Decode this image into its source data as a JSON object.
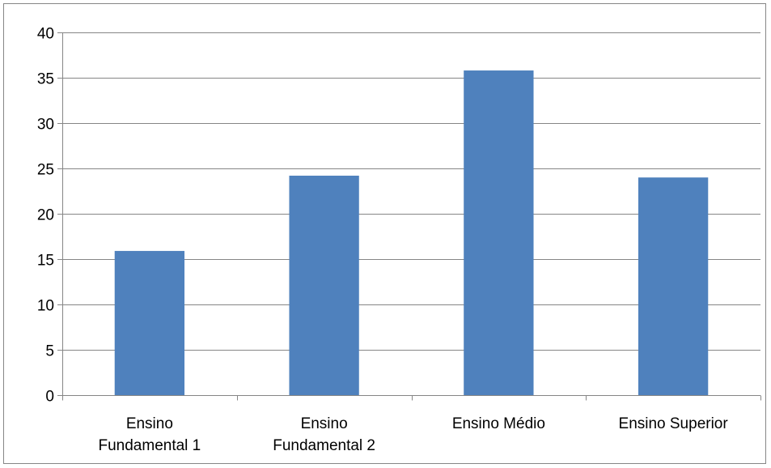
{
  "chart_data": {
    "type": "bar",
    "categories": [
      [
        "Ensino",
        "Fundamental 1"
      ],
      [
        "Ensino",
        "Fundamental 2"
      ],
      [
        "Ensino Médio"
      ],
      [
        "Ensino Superior"
      ]
    ],
    "values": [
      15.9,
      24.2,
      35.8,
      24.0
    ],
    "title": "",
    "xlabel": "",
    "ylabel": "",
    "ylim": [
      0,
      40
    ],
    "yticks": [
      0,
      5,
      10,
      15,
      20,
      25,
      30,
      35,
      40
    ],
    "grid": true,
    "legend": "none",
    "bar_color": "#4F81BD",
    "grid_color": "#868686"
  }
}
